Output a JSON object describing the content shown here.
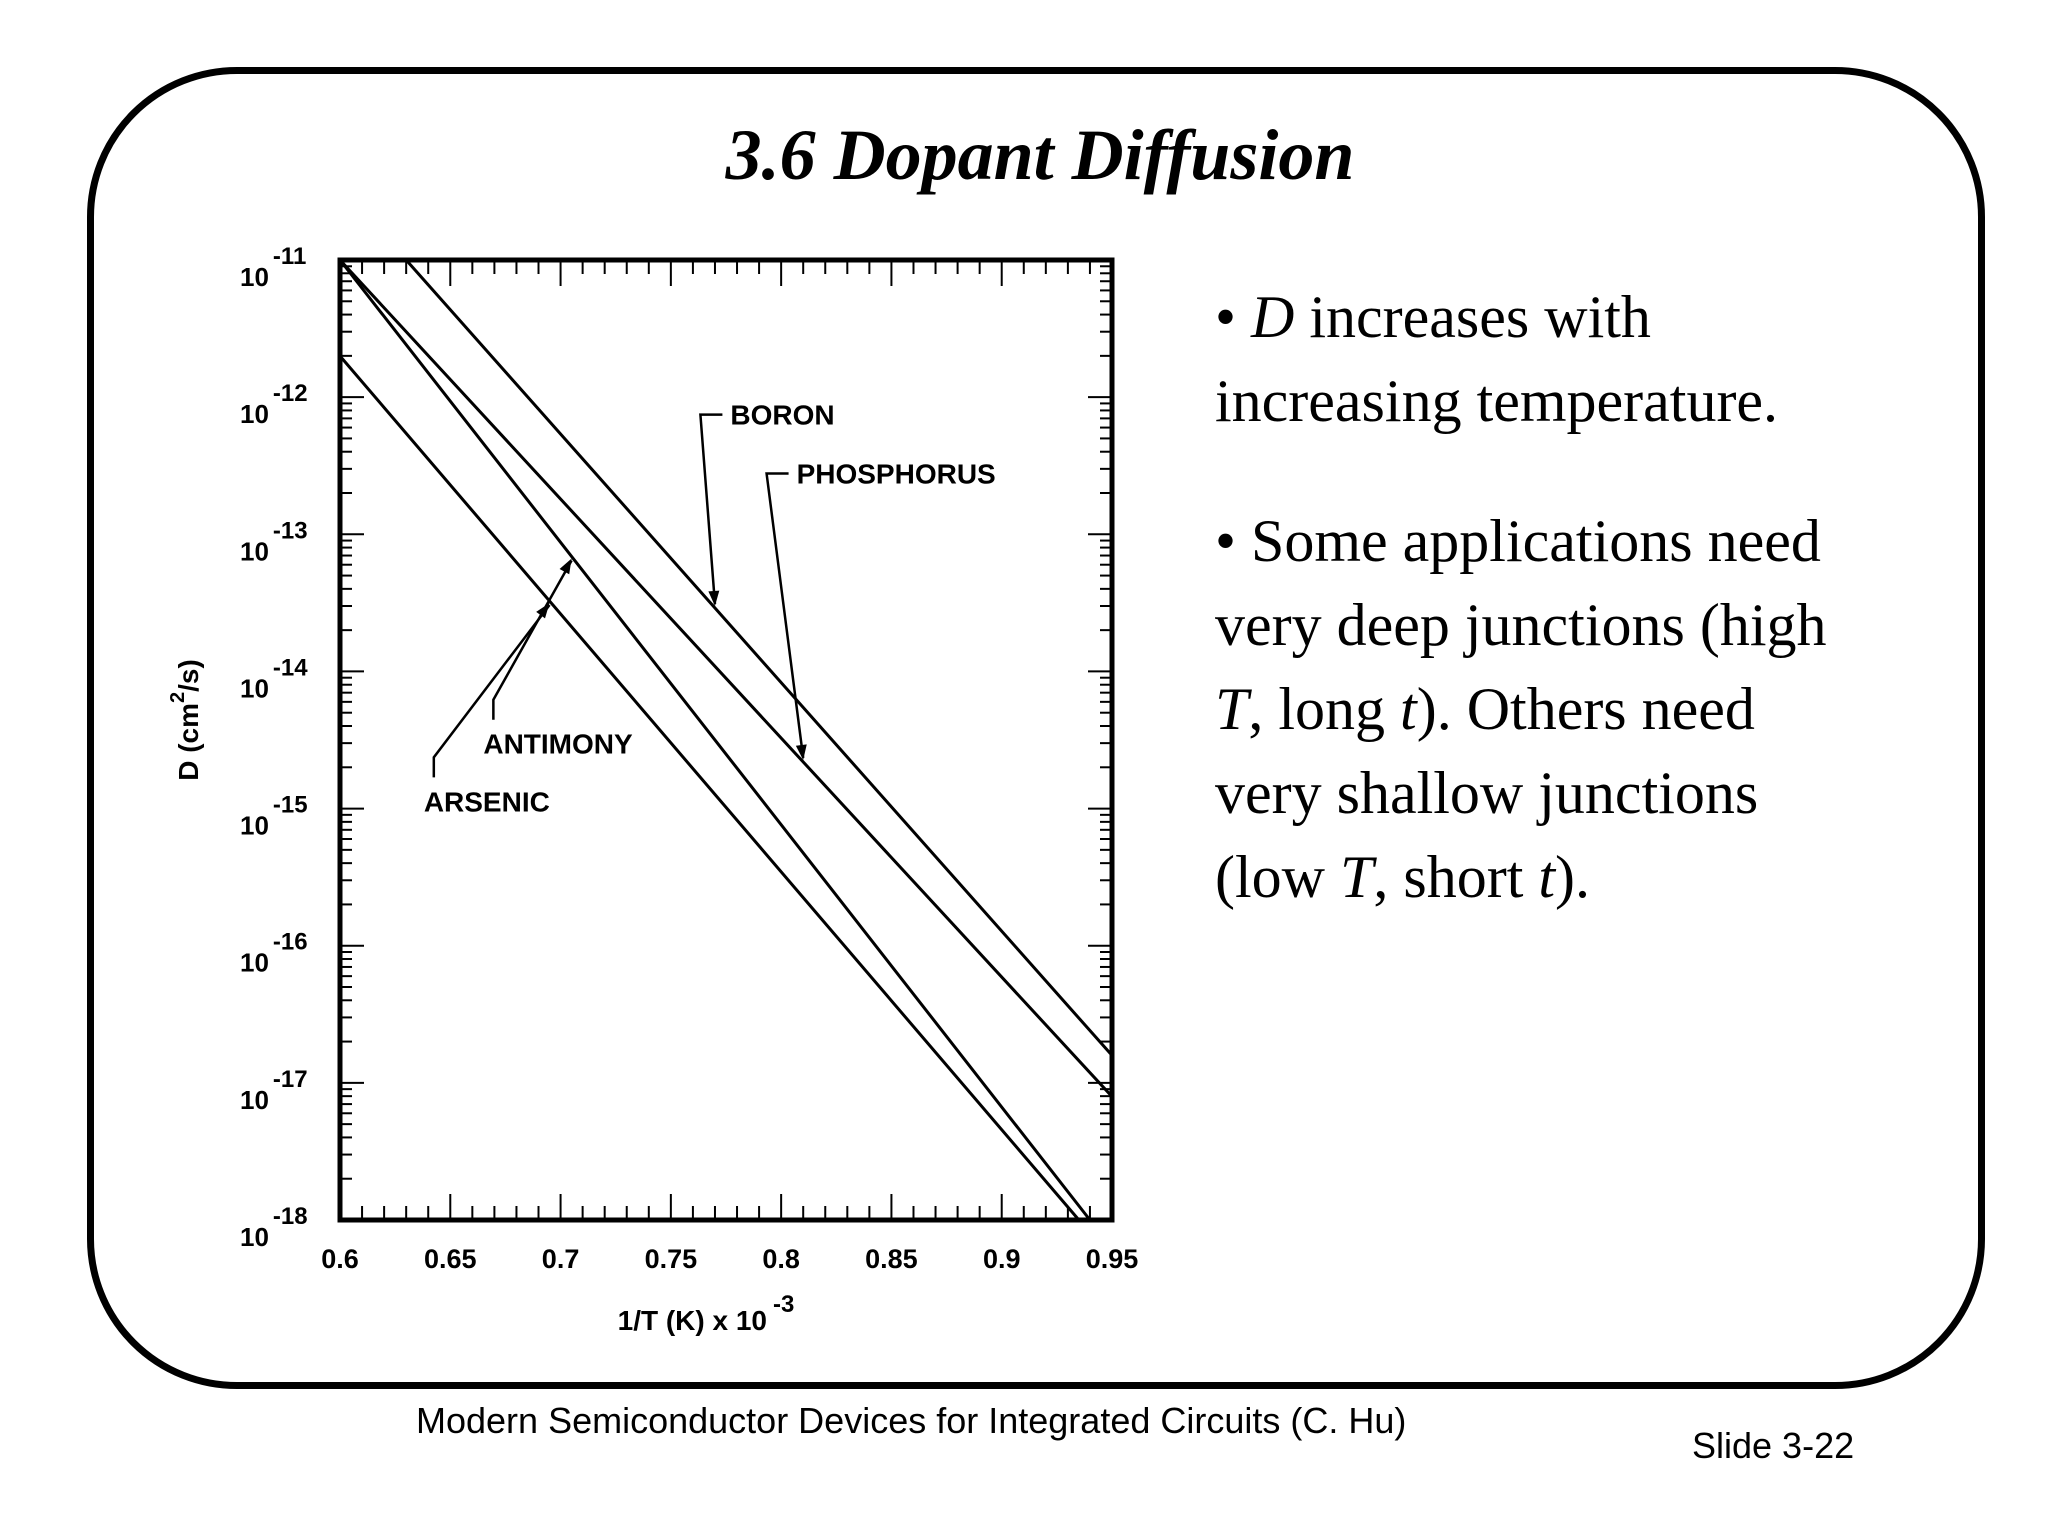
{
  "slide": {
    "title": "3.6  Dopant Diffusion",
    "bullets": [
      {
        "parts": [
          {
            "text": "• ",
            "italic": false
          },
          {
            "text": "D",
            "italic": true
          },
          {
            "text": " increases with",
            "italic": false
          },
          {
            "br": true
          },
          {
            "text": "increasing temperature.",
            "italic": false
          }
        ]
      },
      {
        "parts": [
          {
            "text": "• Some applications need",
            "italic": false
          },
          {
            "br": true
          },
          {
            "text": "very deep junctions (high",
            "italic": false
          },
          {
            "br": true
          },
          {
            "text": "T",
            "italic": true
          },
          {
            "text": ", long ",
            "italic": false
          },
          {
            "text": "t",
            "italic": true
          },
          {
            "text": "). Others need",
            "italic": false
          },
          {
            "br": true
          },
          {
            "text": "very shallow junctions",
            "italic": false
          },
          {
            "br": true
          },
          {
            "text": "(low ",
            "italic": false
          },
          {
            "text": "T",
            "italic": true
          },
          {
            "text": ", short ",
            "italic": false
          },
          {
            "text": "t",
            "italic": true
          },
          {
            "text": ").",
            "italic": false
          }
        ]
      }
    ],
    "footer_source": "Modern Semiconductor Devices for Integrated Circuits (C. Hu)",
    "slide_number": "Slide 3-22"
  },
  "chart_data": {
    "type": "line",
    "xlabel": "1/T (K) x 10",
    "xlabel_exponent": "-3",
    "ylabel": "D (cm",
    "ylabel_sup": "2",
    "ylabel_tail": "/s)",
    "xlim": [
      0.6,
      0.95
    ],
    "ylim_log10": [
      -18,
      -11
    ],
    "y_scale": "log",
    "x_ticks": [
      "0.6",
      "0.65",
      "0.7",
      "0.75",
      "0.8",
      "0.85",
      "0.9",
      "0.95"
    ],
    "x_tick_values": [
      0.6,
      0.65,
      0.7,
      0.75,
      0.8,
      0.85,
      0.9,
      0.95
    ],
    "y_ticks": [
      {
        "base": "10",
        "exp": "-11",
        "value": -11
      },
      {
        "base": "10",
        "exp": "-12",
        "value": -12
      },
      {
        "base": "10",
        "exp": "-13",
        "value": -13
      },
      {
        "base": "10",
        "exp": "-14",
        "value": -14
      },
      {
        "base": "10",
        "exp": "-15",
        "value": -15
      },
      {
        "base": "10",
        "exp": "-16",
        "value": -16
      },
      {
        "base": "10",
        "exp": "-17",
        "value": -17
      },
      {
        "base": "10",
        "exp": "-18",
        "value": -18
      }
    ],
    "series": [
      {
        "name": "BORON",
        "x": [
          0.63,
          0.95
        ],
        "log10_D": [
          -11.0,
          -16.8
        ]
      },
      {
        "name": "PHOSPHORUS",
        "x": [
          0.6,
          0.95
        ],
        "log10_D": [
          -11.0,
          -17.1
        ]
      },
      {
        "name": "ANTIMONY",
        "x": [
          0.6,
          0.94
        ],
        "log10_D": [
          -11.0,
          -18.0
        ]
      },
      {
        "name": "ARSENIC",
        "x": [
          0.6,
          0.935
        ],
        "log10_D": [
          -11.7,
          -18.0
        ]
      }
    ],
    "annotations": [
      {
        "label": "BORON",
        "series": "BORON",
        "at_x": 0.77
      },
      {
        "label": "PHOSPHORUS",
        "series": "PHOSPHORUS",
        "at_x": 0.81
      },
      {
        "label": "ANTIMONY",
        "series": "ANTIMONY",
        "at_x": 0.705
      },
      {
        "label": "ARSENIC",
        "series": "ARSENIC",
        "at_x": 0.695
      }
    ],
    "grid": false
  }
}
